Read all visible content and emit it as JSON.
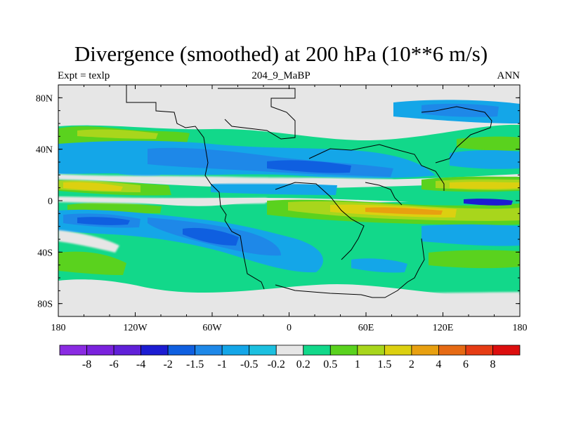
{
  "title": "Divergence (smoothed) at 200 hPa (10**6 m/s)",
  "left_label": "Expt = texlp",
  "center_label": "204_9_MaBP",
  "right_label": "ANN",
  "lat_ticks": [
    "80N",
    "40N",
    "0",
    "40S",
    "80S"
  ],
  "lon_ticks": [
    "180",
    "120W",
    "60W",
    "0",
    "60E",
    "120E",
    "180"
  ],
  "colorbar": {
    "labels": [
      "-8",
      "-6",
      "-4",
      "-2",
      "-1.5",
      "-1",
      "-0.5",
      "-0.2",
      "0.2",
      "0.5",
      "1",
      "1.5",
      "2",
      "4",
      "6",
      "8"
    ],
    "colors": [
      "#8a2be2",
      "#7a22dd",
      "#6020d8",
      "#1c1cd2",
      "#0f5fe0",
      "#1e88e8",
      "#14a6e8",
      "#1cc0e0",
      "#e6e6e6",
      "#12d88a",
      "#5ad21e",
      "#a8d61c",
      "#dcd010",
      "#e8a010",
      "#e66a14",
      "#e63c14",
      "#dc0e0e"
    ]
  },
  "palette": {
    "background": "#e6e6e6",
    "light_blue": "#14a6e8",
    "blue": "#1e88e8",
    "dark_blue": "#0f5fe0",
    "navy": "#1c1cd2",
    "cyan": "#1cc0e0",
    "green_light": "#12d88a",
    "green": "#5ad21e",
    "yellow_green": "#a8d61c",
    "yellow": "#dcd010",
    "orange": "#e8a010"
  }
}
